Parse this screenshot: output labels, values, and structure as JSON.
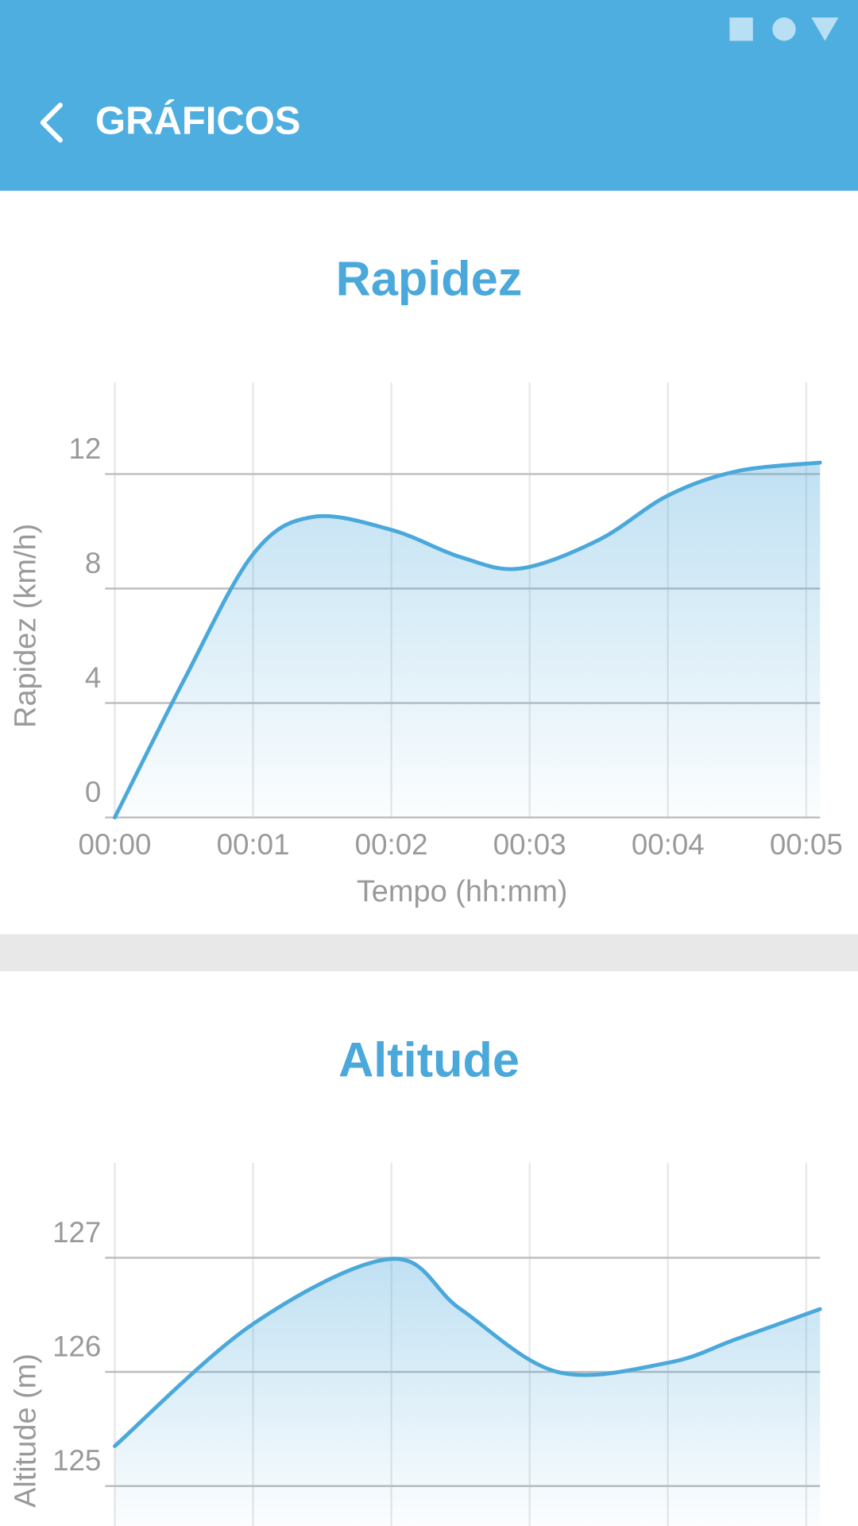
{
  "header": {
    "title": "GRÁFICOS"
  },
  "chart_data": [
    {
      "type": "area",
      "title": "Rapidez",
      "x_label": "Tempo (hh:mm)",
      "y_label": "Rapidez (km/h)",
      "x": [
        0,
        0.5,
        1,
        1.43,
        2,
        2.5,
        2.93,
        3.5,
        4,
        4.5,
        5.1
      ],
      "values": [
        0,
        4.8,
        9.2,
        10.5,
        10.05,
        9.1,
        8.7,
        9.7,
        11.25,
        12.1,
        12.4
      ],
      "color": "#4aa8db",
      "xlim": [
        0,
        5.1
      ],
      "xticks": [
        {
          "value": 0,
          "label": "00:00"
        },
        {
          "value": 1,
          "label": "00:01"
        },
        {
          "value": 2,
          "label": "00:02"
        },
        {
          "value": 3,
          "label": "00:03"
        },
        {
          "value": 4,
          "label": "00:04"
        },
        {
          "value": 5,
          "label": "00:05"
        }
      ],
      "ylim": [
        0,
        15.2
      ],
      "yticks": [
        0,
        4,
        8,
        12
      ],
      "grid": true
    },
    {
      "type": "area",
      "title": "Altitude",
      "y_label": "Altitude (m)",
      "x": [
        0,
        1,
        2,
        2.5,
        3.2,
        4,
        4.5,
        5.1
      ],
      "values": [
        125.35,
        126.42,
        126.99,
        126.55,
        126.0,
        126.08,
        126.29,
        126.55
      ],
      "color": "#4aa8db",
      "xlim": [
        0,
        5.1
      ],
      "xticks": [
        0,
        1,
        2,
        3,
        4,
        5
      ],
      "ylim": [
        124.65,
        127.83
      ],
      "yticks": [
        125,
        126,
        127
      ],
      "grid": true
    }
  ]
}
